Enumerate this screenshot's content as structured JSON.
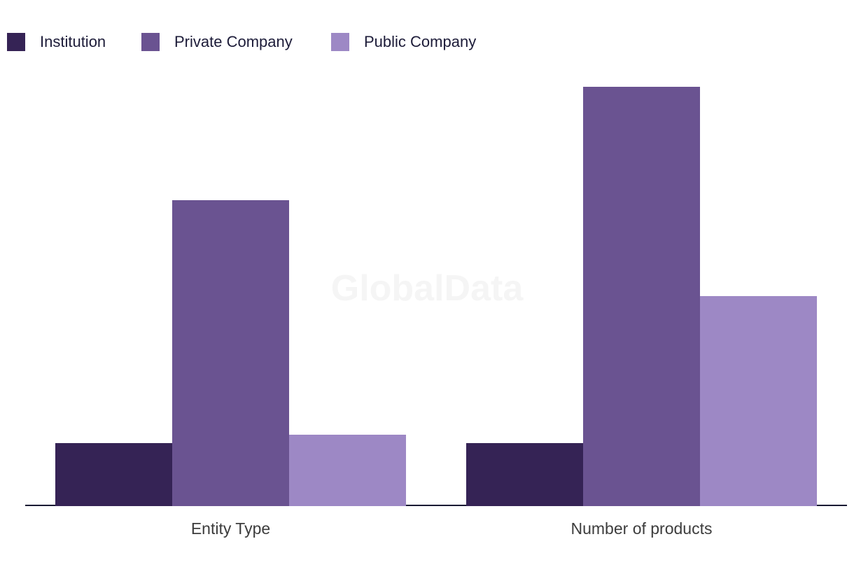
{
  "watermark": {
    "text": "GlobalData",
    "color": "#f5f5f5"
  },
  "legend": {
    "position": "top-left",
    "items": [
      {
        "label": "Institution",
        "color": "#352355"
      },
      {
        "label": "Private Company",
        "color": "#6a5391"
      },
      {
        "label": "Public Company",
        "color": "#9d88c5"
      }
    ]
  },
  "colors": {
    "background": "#ffffff",
    "axis_line": "#191a33",
    "category_label_text": "#3d3d3d",
    "legend_text": "#1d1c39"
  },
  "chart_data": {
    "type": "bar",
    "title": "",
    "xlabel": "",
    "ylabel": "",
    "categories": [
      "Entity Type",
      "Number of products"
    ],
    "series": [
      {
        "name": "Institution",
        "color": "#352355",
        "values": [
          15,
          15
        ]
      },
      {
        "name": "Private Company",
        "color": "#6a5391",
        "values": [
          73,
          100
        ]
      },
      {
        "name": "Public Company",
        "color": "#9d88c5",
        "values": [
          17,
          50
        ]
      }
    ],
    "value_unit": "percent of tallest bar (no y-axis / value labels shown in chart)",
    "ylim": [
      0,
      100
    ],
    "grid": false,
    "legend_position": "top-left"
  }
}
